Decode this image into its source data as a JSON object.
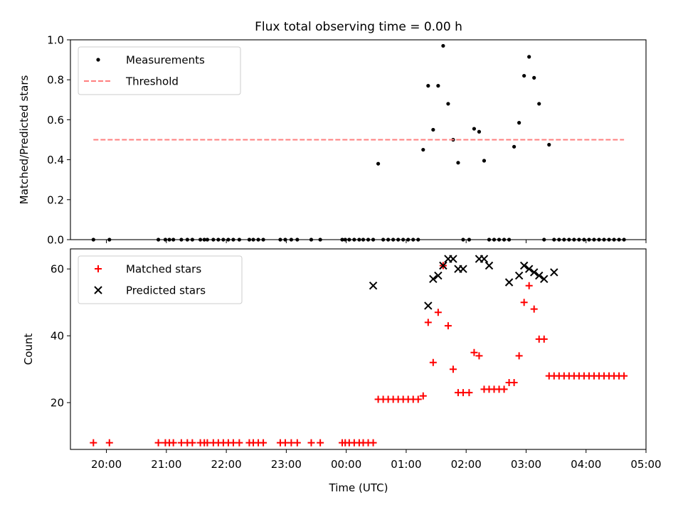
{
  "title": "Flux total observing time = 0.00 h",
  "xlabel": "Time (UTC)",
  "x_ticks": [
    "20:00",
    "21:00",
    "22:00",
    "23:00",
    "00:00",
    "01:00",
    "02:00",
    "03:00",
    "04:00",
    "05:00"
  ],
  "chart_data": [
    {
      "type": "scatter",
      "ylabel": "Matched/Predicted stars",
      "ylim": [
        0,
        1.0
      ],
      "y_ticks": [
        "0.0",
        "0.2",
        "0.4",
        "0.6",
        "0.8",
        "1.0"
      ],
      "legend_position": "upper-left",
      "grid": false,
      "series": [
        {
          "name": "Measurements",
          "kind": "scatter",
          "marker": "dot",
          "color": "#000000",
          "x": [
            "19:47",
            "20:03",
            "20:52",
            "20:59",
            "21:03",
            "21:07",
            "21:15",
            "21:21",
            "21:26",
            "21:34",
            "21:38",
            "21:41",
            "21:47",
            "21:52",
            "21:57",
            "22:02",
            "22:07",
            "22:13",
            "22:23",
            "22:27",
            "22:32",
            "22:37",
            "22:54",
            "22:59",
            "23:05",
            "23:11",
            "23:25",
            "23:34",
            "23:56",
            "23:59",
            "00:03",
            "00:08",
            "00:13",
            "00:17",
            "00:22",
            "00:27",
            "00:32",
            "00:37",
            "00:42",
            "00:47",
            "00:52",
            "00:57",
            "01:02",
            "01:07",
            "01:12",
            "01:17",
            "01:22",
            "01:27",
            "01:32",
            "01:37",
            "01:42",
            "01:47",
            "01:52",
            "01:57",
            "02:03",
            "02:08",
            "02:13",
            "02:18",
            "02:23",
            "02:28",
            "02:33",
            "02:38",
            "02:43",
            "02:48",
            "02:53",
            "02:58",
            "03:03",
            "03:08",
            "03:13",
            "03:18",
            "03:23",
            "03:28",
            "03:33",
            "03:38",
            "03:43",
            "03:48",
            "03:53",
            "03:58",
            "04:03",
            "04:08",
            "04:13",
            "04:18",
            "04:23",
            "04:28",
            "04:33",
            "04:38"
          ],
          "y": [
            0,
            0,
            0,
            0,
            0,
            0,
            0,
            0,
            0,
            0,
            0,
            0,
            0,
            0,
            0,
            0,
            0,
            0,
            0,
            0,
            0,
            0,
            0,
            0,
            0,
            0,
            0,
            0,
            0,
            0,
            0,
            0,
            0,
            0,
            0,
            0,
            0.38,
            0,
            0,
            0,
            0,
            0,
            0,
            0,
            0,
            0.45,
            0.77,
            0.55,
            0.77,
            0.97,
            0.68,
            0.5,
            0.385,
            0,
            0,
            0.555,
            0.54,
            0.395,
            0,
            0,
            0,
            0,
            0,
            0.465,
            0.585,
            0.82,
            0.915,
            0.81,
            0.68,
            0,
            0.475,
            0,
            0,
            0,
            0,
            0,
            0,
            0,
            0,
            0,
            0,
            0,
            0,
            0,
            0,
            0
          ]
        },
        {
          "name": "Threshold",
          "kind": "line",
          "style": "dashed",
          "color": "#ff7f7f",
          "x": [
            "19:47",
            "04:38"
          ],
          "y": [
            0.5,
            0.5
          ]
        }
      ]
    },
    {
      "type": "scatter",
      "ylabel": "Count",
      "ylim": [
        6,
        66
      ],
      "y_ticks": [
        "20",
        "40",
        "60"
      ],
      "legend_position": "upper-left",
      "grid": false,
      "series": [
        {
          "name": "Matched stars",
          "kind": "scatter",
          "marker": "plus",
          "color": "#ff0000",
          "x": [
            "19:47",
            "20:03",
            "20:52",
            "20:59",
            "21:03",
            "21:07",
            "21:15",
            "21:21",
            "21:26",
            "21:34",
            "21:38",
            "21:41",
            "21:47",
            "21:52",
            "21:57",
            "22:02",
            "22:07",
            "22:13",
            "22:23",
            "22:27",
            "22:32",
            "22:37",
            "22:54",
            "22:59",
            "23:05",
            "23:11",
            "23:25",
            "23:34",
            "23:56",
            "23:59",
            "00:03",
            "00:08",
            "00:13",
            "00:17",
            "00:22",
            "00:27",
            "00:32",
            "00:37",
            "00:42",
            "00:47",
            "00:52",
            "00:57",
            "01:02",
            "01:07",
            "01:12",
            "01:17",
            "01:22",
            "01:27",
            "01:32",
            "01:37",
            "01:42",
            "01:47",
            "01:52",
            "01:57",
            "02:03",
            "02:08",
            "02:13",
            "02:18",
            "02:23",
            "02:28",
            "02:33",
            "02:38",
            "02:43",
            "02:48",
            "02:53",
            "02:58",
            "03:03",
            "03:08",
            "03:13",
            "03:18",
            "03:23",
            "03:28",
            "03:33",
            "03:38",
            "03:43",
            "03:48",
            "03:53",
            "03:58",
            "04:03",
            "04:08",
            "04:13",
            "04:18",
            "04:23",
            "04:28",
            "04:33",
            "04:38"
          ],
          "y": [
            8,
            8,
            8,
            8,
            8,
            8,
            8,
            8,
            8,
            8,
            8,
            8,
            8,
            8,
            8,
            8,
            8,
            8,
            8,
            8,
            8,
            8,
            8,
            8,
            8,
            8,
            8,
            8,
            8,
            8,
            8,
            8,
            8,
            8,
            8,
            8,
            21,
            21,
            21,
            21,
            21,
            21,
            21,
            21,
            21,
            22,
            44,
            32,
            47,
            61,
            43,
            30,
            23,
            23,
            23,
            35,
            34,
            24,
            24,
            24,
            24,
            24,
            26,
            26,
            34,
            50,
            55,
            48,
            39,
            39,
            28,
            28,
            28,
            28,
            28,
            28,
            28,
            28,
            28,
            28,
            28,
            28,
            28,
            28,
            28,
            28
          ]
        },
        {
          "name": "Predicted stars",
          "kind": "scatter",
          "marker": "x",
          "color": "#000000",
          "x": [
            "00:27",
            "01:22",
            "01:27",
            "01:32",
            "01:37",
            "01:42",
            "01:47",
            "01:52",
            "01:57",
            "02:13",
            "02:18",
            "02:23",
            "02:43",
            "02:53",
            "02:58",
            "03:03",
            "03:08",
            "03:13",
            "03:18",
            "03:28"
          ],
          "y": [
            55,
            49,
            57,
            58,
            61,
            63,
            63,
            60,
            60,
            63,
            63,
            61,
            56,
            58,
            61,
            60,
            59,
            58,
            57,
            59
          ]
        }
      ]
    }
  ]
}
